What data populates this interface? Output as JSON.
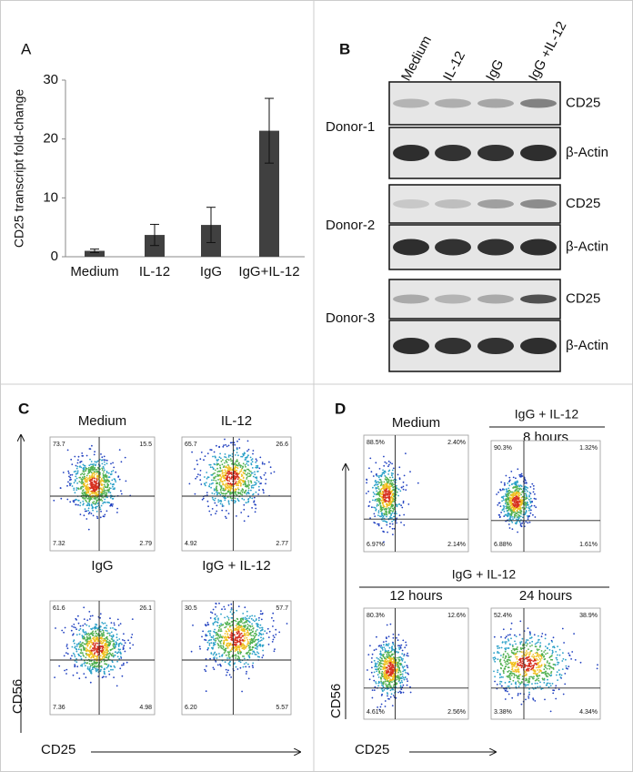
{
  "chart_data": {
    "type": "bar",
    "label": "A",
    "y_label": "CD25 transcript fold-change",
    "categories": [
      "Medium",
      "IL-12",
      "IgG",
      "IgG+IL-12"
    ],
    "values": [
      1.0,
      3.7,
      5.4,
      21.4
    ],
    "errors": [
      0.3,
      1.8,
      3.0,
      5.5
    ],
    "color": "#404040",
    "ylim": [
      0,
      30
    ],
    "yticks": [
      0,
      10,
      20,
      30
    ],
    "grid": false
  },
  "panel_b": {
    "label": "B",
    "lanes": [
      "Medium",
      "IL-12",
      "IgG",
      "IgG +IL-12"
    ],
    "donors": [
      {
        "name": "Donor-1",
        "top": "CD25",
        "bottom": "β-Actin"
      },
      {
        "name": "Donor-2",
        "top": "CD25",
        "bottom": "β-Actin"
      },
      {
        "name": "Donor-3",
        "top": "CD25",
        "bottom": "β-Actin"
      }
    ]
  },
  "panel_c": {
    "label": "C",
    "y_axis": "CD56",
    "x_axis": "CD25",
    "plots": [
      {
        "title": "Medium",
        "q1": "73.7",
        "q2": "15.5",
        "q3": "2.79",
        "q4": "7.32"
      },
      {
        "title": "IL-12",
        "q1": "65.7",
        "q2": "26.6",
        "q3": "2.77",
        "q4": "4.92"
      },
      {
        "title": "IgG",
        "q1": "61.6",
        "q2": "26.1",
        "q3": "4.98",
        "q4": "7.36"
      },
      {
        "title": "IgG + IL-12",
        "q1": "30.5",
        "q2": "57.7",
        "q3": "5.57",
        "q4": "6.20"
      }
    ]
  },
  "panel_d": {
    "label": "D",
    "y_axis": "CD56",
    "x_axis": "CD25",
    "groups": [
      "IgG + IL-12",
      "IgG + IL-12"
    ],
    "plots": [
      {
        "title": "Medium",
        "q1": "88.5%",
        "q2": "2.40%",
        "q3": "2.14%",
        "q4": "6.97%"
      },
      {
        "title": "8 hours",
        "q1": "90.3%",
        "q2": "1.32%",
        "q3": "1.61%",
        "q4": "6.88%"
      },
      {
        "title": "12 hours",
        "q1": "80.3%",
        "q2": "12.6%",
        "q3": "2.56%",
        "q4": "4.61%"
      },
      {
        "title": "24 hours",
        "q1": "52.4%",
        "q2": "38.9%",
        "q3": "4.34%",
        "q4": "3.38%"
      }
    ]
  }
}
